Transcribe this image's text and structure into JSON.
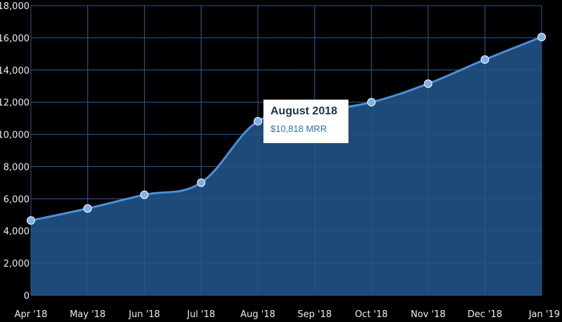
{
  "chart_data": {
    "type": "area",
    "categories": [
      "Apr '18",
      "May '18",
      "Jun '18",
      "Jul '18",
      "Aug '18",
      "Sep '18",
      "Oct '18",
      "Nov '18",
      "Dec '18",
      "Jan '19"
    ],
    "series": [
      {
        "values": [
          4650,
          5400,
          6250,
          7000,
          10818,
          null,
          12000,
          13150,
          14650,
          16050
        ]
      }
    ],
    "ylim": [
      0,
      18000
    ],
    "yticks": [
      "0",
      "2,000",
      "4,000",
      "6,000",
      "8,000",
      "10,000",
      "12,000",
      "14,000",
      "16,000",
      "18,000"
    ],
    "grid": true,
    "legend": "none",
    "colors": {
      "background": "#000000",
      "area_fill": "#1f4e7f",
      "line": "#4d8fd6",
      "grid": "#2e5785",
      "marker": "#7fb2ea"
    }
  },
  "tooltip": {
    "title": "August 2018",
    "value": "$10,818 MRR"
  }
}
